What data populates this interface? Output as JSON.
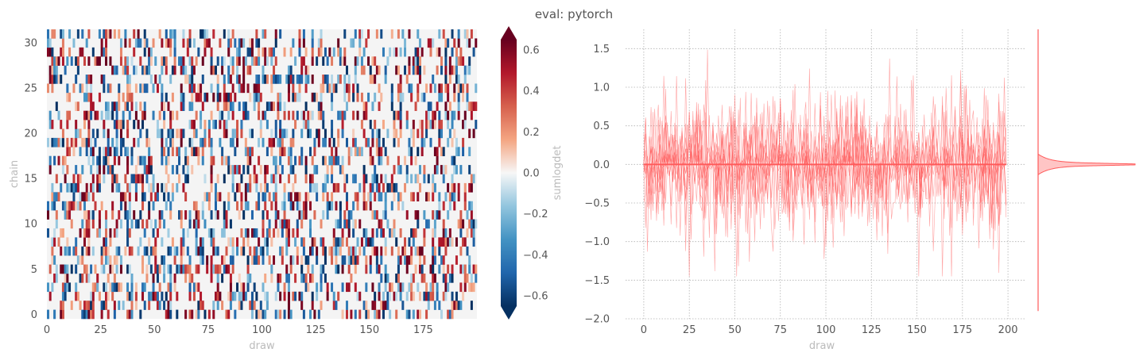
{
  "figure": {
    "suptitle": "eval: pytorch"
  },
  "chart_data": [
    {
      "type": "heatmap",
      "title": "",
      "xlabel": "draw",
      "ylabel": "chain",
      "xlim": [
        0,
        200
      ],
      "ylim": [
        0,
        32
      ],
      "xticks": [
        "0",
        "25",
        "50",
        "75",
        "100",
        "125",
        "150",
        "175"
      ],
      "yticks": [
        "0",
        "5",
        "10",
        "15",
        "20",
        "25",
        "30"
      ],
      "n_draws": 200,
      "n_chains": 32,
      "value_range": [
        -0.65,
        0.65
      ],
      "colormap": "RdBu_r",
      "colorbar": {
        "label": "sumlogdet",
        "ticks": [
          "0.6",
          "0.4",
          "0.2",
          "0.0",
          "−0.2",
          "−0.4",
          "−0.6"
        ],
        "extend": "both"
      },
      "description": "Sparse grid: most cells near 0 (light grey); scattered cells of magnitude ~0.2–0.65 in both signs"
    },
    {
      "type": "line",
      "title": "",
      "xlabel": "draw",
      "ylabel": "",
      "xlim": [
        -10,
        210
      ],
      "ylim": [
        -2.0,
        1.75
      ],
      "xticks": [
        "0",
        "25",
        "50",
        "75",
        "100",
        "125",
        "150",
        "175",
        "200"
      ],
      "yticks": [
        "1.5",
        "1.0",
        "0.5",
        "0.0",
        "−0.5",
        "−1.0",
        "−1.5",
        "−2.0"
      ],
      "grid": true,
      "series_color": "#ff5a5a",
      "n_series": 32,
      "x_range": [
        0,
        199
      ],
      "mean_value": 0.0,
      "observed_range": [
        -1.45,
        1.6
      ],
      "marginal": {
        "type": "violin",
        "orientation": "horizontal",
        "center": 0.0,
        "extent": [
          -1.9,
          1.75
        ]
      }
    }
  ]
}
